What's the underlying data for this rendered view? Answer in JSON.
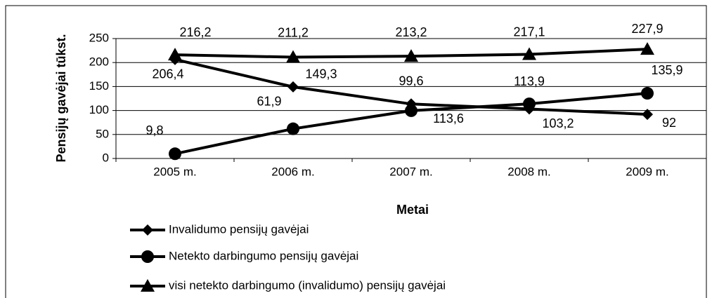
{
  "chart_data": {
    "type": "line",
    "x_label": "Metai",
    "y_label": "Pensijų gavėjai tūkst.",
    "categories": [
      "2005 m.",
      "2006 m.",
      "2007 m.",
      "2008 m.",
      "2009 m."
    ],
    "series": [
      {
        "name": "Invalidumo pensijų gavėjai",
        "color": "#000000",
        "marker": "diamond",
        "values": [
          206.4,
          149.3,
          113.6,
          103.2,
          92
        ],
        "value_labels": [
          "206,4",
          "149,3",
          "113,6",
          "103,2",
          "92"
        ]
      },
      {
        "name": "Netekto darbingumo pensijų gavėjai",
        "color": "#000000",
        "marker": "circle",
        "values": [
          9.8,
          61.9,
          99.6,
          113.9,
          135.9
        ],
        "value_labels": [
          "9,8",
          "61,9",
          "99,6",
          "113,9",
          "135,9"
        ]
      },
      {
        "name": "visi netekto darbingumo (invalidumo) pensijų gavėjai",
        "color": "#000000",
        "marker": "triangle",
        "values": [
          216.2,
          211.2,
          213.2,
          217.1,
          227.9
        ],
        "value_labels": [
          "216,2",
          "211,2",
          "213,2",
          "217,1",
          "227,9"
        ]
      }
    ],
    "ylim": [
      0,
      250
    ],
    "yticks": [
      0,
      50,
      100,
      150,
      200,
      250
    ],
    "grid": true,
    "legend": "bottom"
  }
}
